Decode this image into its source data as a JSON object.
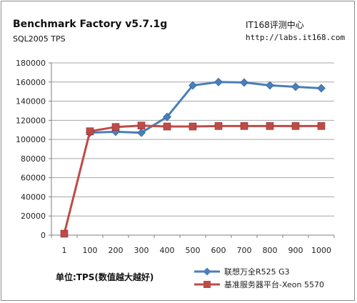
{
  "header": {
    "title": "Benchmark Factory v5.7.1g",
    "subtitle": "SQL2005 TPS",
    "brand": "IT168评测中心",
    "brand_url": "http://labs.it168.com"
  },
  "footer": {
    "unit_label": "单位:TPS(数值越大越好)"
  },
  "colors": {
    "series_lenovo": "#4a7ebb",
    "series_xeon": "#be4b48",
    "grid": "#a6a6a6",
    "axis": "#7f7f7f"
  },
  "chart_data": {
    "type": "line",
    "title": "Benchmark Factory v5.7.1g",
    "subtitle": "SQL2005 TPS",
    "xlabel": "",
    "ylabel": "",
    "categories": [
      "1",
      "100",
      "200",
      "300",
      "400",
      "500",
      "600",
      "700",
      "800",
      "900",
      "1000"
    ],
    "ylim": [
      0,
      180000
    ],
    "yticks": [
      0,
      20000,
      40000,
      60000,
      80000,
      100000,
      120000,
      140000,
      160000,
      180000
    ],
    "grid": "horizontal",
    "legend_position": "bottom-right",
    "series": [
      {
        "name": "联想万全R525 G3",
        "marker": "diamond",
        "values": [
          null,
          107000,
          108000,
          107000,
          123500,
          156500,
          160000,
          159500,
          156500,
          155000,
          153500
        ]
      },
      {
        "name": "基准服务器平台-Xeon 5570",
        "marker": "square",
        "values": [
          1500,
          108500,
          113000,
          114500,
          113500,
          113500,
          114000,
          114000,
          114000,
          114000,
          114000
        ]
      }
    ]
  }
}
